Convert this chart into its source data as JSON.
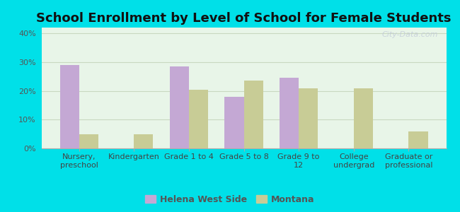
{
  "title": "School Enrollment by Level of School for Female Students",
  "categories": [
    "Nursery,\npreschool",
    "Kindergarten",
    "Grade 1 to 4",
    "Grade 5 to 8",
    "Grade 9 to\n12",
    "College\nundergrad",
    "Graduate or\nprofessional"
  ],
  "helena_values": [
    29,
    0,
    28.5,
    18,
    24.5,
    0,
    0
  ],
  "montana_values": [
    5,
    5,
    20.5,
    23.5,
    21,
    21,
    6
  ],
  "helena_color": "#c4a8d4",
  "montana_color": "#c8cc96",
  "background_color": "#00e0e8",
  "plot_bg_color": "#e8f5e8",
  "ylim": [
    0,
    42
  ],
  "yticks": [
    0,
    10,
    20,
    30,
    40
  ],
  "ytick_labels": [
    "0%",
    "10%",
    "20%",
    "30%",
    "40%"
  ],
  "legend_labels": [
    "Helena West Side",
    "Montana"
  ],
  "watermark": "City-Data.com",
  "bar_width": 0.35,
  "grid_color": "#c8d8c0",
  "title_fontsize": 13,
  "tick_fontsize": 8,
  "legend_fontsize": 9
}
